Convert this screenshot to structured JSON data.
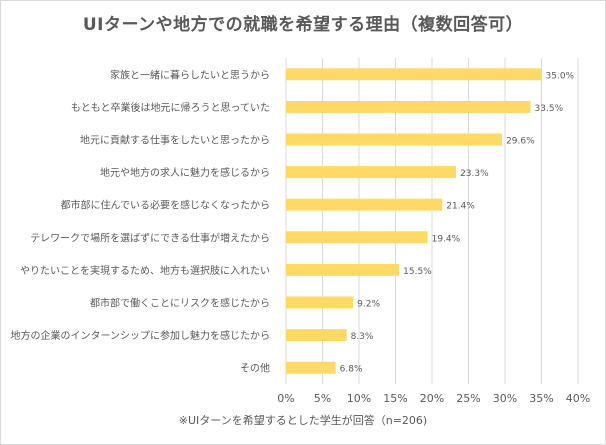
{
  "chart_data": {
    "type": "bar",
    "orientation": "horizontal",
    "title": "UIターンや地方での就職を希望する理由（複数回答可）",
    "categories": [
      "家族と一緒に暮らしたいと思うから",
      "もともと卒業後は地元に帰ろうと思っていた",
      "地元に貢献する仕事をしたいと思ったから",
      "地元や地方の求人に魅力を感じるから",
      "都市部に住んでいる必要を感じなくなったから",
      "テレワークで場所を選ばずにできる仕事が増えたから",
      "やりたいことを実現するため、地方も選択肢に入れたい",
      "都市部で働くことにリスクを感じたから",
      "地方の企業のインターンシップに参加し魅力を感じたから",
      "その他"
    ],
    "values": [
      35.0,
      33.5,
      29.6,
      23.3,
      21.4,
      19.4,
      15.5,
      9.2,
      8.3,
      6.8
    ],
    "value_labels": [
      "35.0%",
      "33.5%",
      "29.6%",
      "23.3%",
      "21.4%",
      "19.4%",
      "15.5%",
      "9.2%",
      "8.3%",
      "6.8%"
    ],
    "x_ticks": [
      0,
      5,
      10,
      15,
      20,
      25,
      30,
      35,
      40
    ],
    "x_tick_labels": [
      "0%",
      "5%",
      "10%",
      "15%",
      "20%",
      "25%",
      "30%",
      "35%",
      "40%"
    ],
    "xlim": [
      0,
      40
    ],
    "grid": true,
    "footnote": "※UIターンを希望するとした学生が回答（n=206)",
    "colors": {
      "bar": "#FFD966",
      "grid": "#d9d9d9",
      "text": "#595959",
      "axis": "#bfbfbf"
    }
  }
}
